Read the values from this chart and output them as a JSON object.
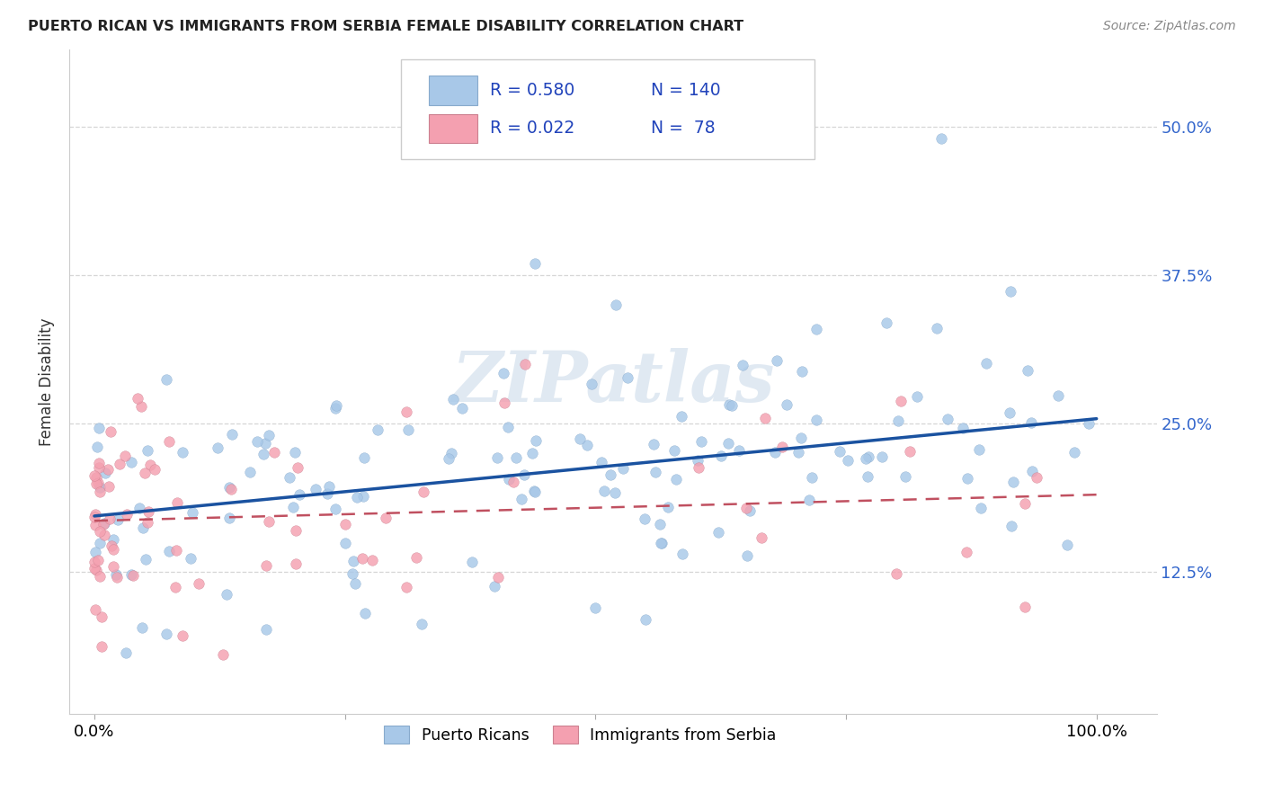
{
  "title": "PUERTO RICAN VS IMMIGRANTS FROM SERBIA FEMALE DISABILITY CORRELATION CHART",
  "source": "Source: ZipAtlas.com",
  "ylabel": "Female Disability",
  "ytick_labels": [
    "12.5%",
    "25.0%",
    "37.5%",
    "50.0%"
  ],
  "ytick_values": [
    0.125,
    0.25,
    0.375,
    0.5
  ],
  "legend_entries": [
    {
      "label": "Puerto Ricans",
      "color": "#aec6e8",
      "R": "0.580",
      "N": "140"
    },
    {
      "label": "Immigrants from Serbia",
      "color": "#f4a7b9",
      "R": "0.022",
      "N": " 78"
    }
  ],
  "watermark": "ZIPatlas",
  "dot_color_blue": "#a8c8e8",
  "dot_color_pink": "#f4a0b0",
  "line_color_blue": "#1a52a0",
  "line_color_pink": "#c05060",
  "grid_color": "#cccccc",
  "background_color": "#ffffff",
  "blue_intercept": 0.172,
  "blue_slope": 0.082,
  "pink_intercept": 0.168,
  "pink_slope": 0.022
}
